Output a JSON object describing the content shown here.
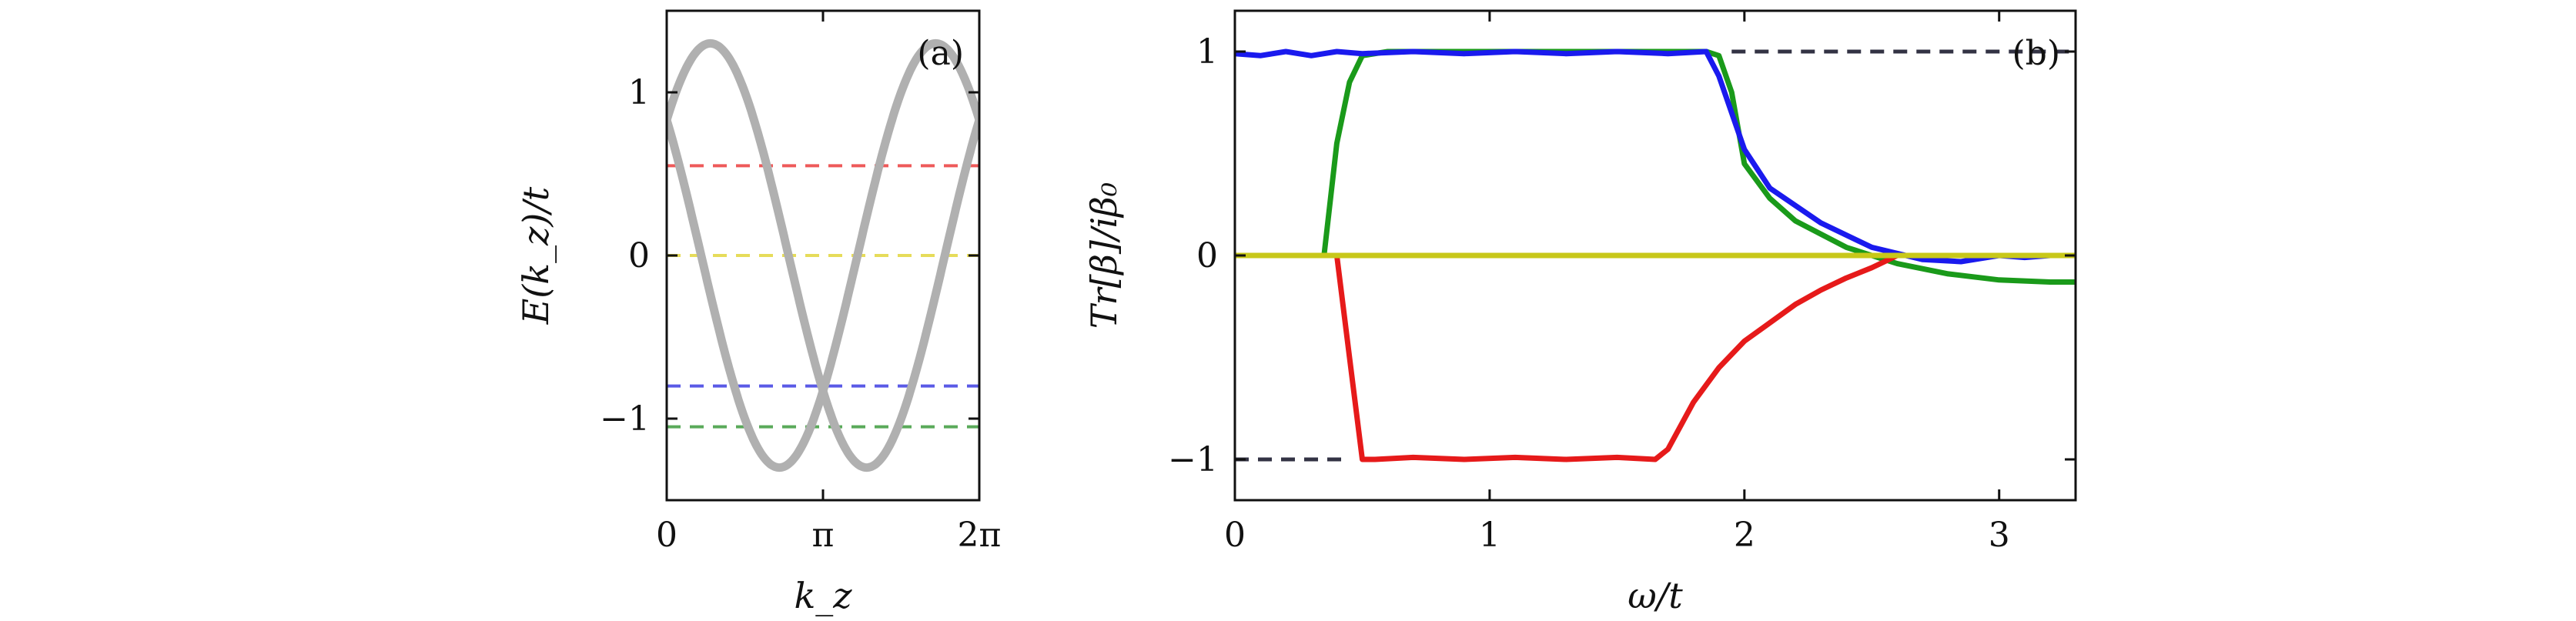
{
  "chart_data": [
    {
      "type": "line",
      "panel_label": "(a)",
      "xlabel": "k_z",
      "ylabel": "E(k_z)/t",
      "xlim": [
        0,
        6.2832
      ],
      "ylim": [
        -1.5,
        1.5
      ],
      "x_ticks": [
        {
          "value": 0,
          "label": "0"
        },
        {
          "value": 3.1416,
          "label": "π"
        },
        {
          "value": 6.2832,
          "label": "2π"
        }
      ],
      "y_ticks": [
        {
          "value": 1,
          "label": "1"
        },
        {
          "value": 0,
          "label": "0"
        },
        {
          "value": -1,
          "label": "−1"
        }
      ],
      "bands": [
        {
          "amplitude": 1.3,
          "phase": 0.878,
          "color": "#b0b0b0"
        },
        {
          "amplitude": 1.3,
          "phase": -0.878,
          "color": "#b0b0b0"
        }
      ],
      "dashed_levels": [
        {
          "y": 0.55,
          "color": "#ee5a5a"
        },
        {
          "y": 0.0,
          "color": "#e6dc5a"
        },
        {
          "y": -0.8,
          "color": "#5a5ae6"
        },
        {
          "y": -1.05,
          "color": "#5aaa5a"
        }
      ]
    },
    {
      "type": "line",
      "panel_label": "(b)",
      "xlabel": "ω/t",
      "ylabel": "Tr[β]/iβ₀",
      "xlim": [
        0,
        3.3
      ],
      "ylim": [
        -1.2,
        1.2
      ],
      "x_ticks": [
        {
          "value": 0,
          "label": "0"
        },
        {
          "value": 1,
          "label": "1"
        },
        {
          "value": 2,
          "label": "2"
        },
        {
          "value": 3,
          "label": "3"
        }
      ],
      "y_ticks": [
        {
          "value": 1,
          "label": "1"
        },
        {
          "value": 0,
          "label": "0"
        },
        {
          "value": -1,
          "label": "−1"
        }
      ],
      "reference_lines": [
        {
          "y": 1,
          "color": "#333344"
        },
        {
          "y": -1,
          "color": "#333344"
        }
      ],
      "series": [
        {
          "color": "#1a9a1a",
          "x": [
            0,
            0.35,
            0.4,
            0.45,
            0.5,
            0.6,
            1.0,
            1.5,
            1.85,
            1.9,
            1.95,
            2.0,
            2.1,
            2.2,
            2.4,
            2.6,
            2.8,
            3.0,
            3.2,
            3.3
          ],
          "y": [
            0,
            0,
            0.55,
            0.85,
            0.98,
            1.0,
            1.0,
            1.0,
            1.0,
            0.98,
            0.8,
            0.45,
            0.28,
            0.17,
            0.04,
            -0.04,
            -0.09,
            -0.12,
            -0.13,
            -0.13
          ]
        },
        {
          "color": "#1a1aee",
          "x": [
            0,
            0.1,
            0.2,
            0.3,
            0.4,
            0.5,
            0.7,
            0.9,
            1.1,
            1.3,
            1.5,
            1.7,
            1.85,
            1.9,
            2.0,
            2.1,
            2.3,
            2.5,
            2.7,
            2.85,
            3.0,
            3.1,
            3.2,
            3.3
          ],
          "y": [
            0.99,
            0.98,
            1.0,
            0.98,
            1.0,
            0.99,
            1.0,
            0.99,
            1.0,
            0.99,
            1.0,
            0.99,
            1.0,
            0.88,
            0.52,
            0.33,
            0.16,
            0.04,
            -0.02,
            -0.03,
            0.0,
            -0.01,
            0.0,
            0.0
          ]
        },
        {
          "color": "#e61a1a",
          "x": [
            0.4,
            0.45,
            0.5,
            0.55,
            0.7,
            0.9,
            1.1,
            1.3,
            1.5,
            1.65,
            1.7,
            1.8,
            1.9,
            2.0,
            2.1,
            2.2,
            2.3,
            2.4,
            2.5,
            2.55,
            2.6
          ],
          "y": [
            0,
            -0.5,
            -1.0,
            -1.0,
            -0.99,
            -1.0,
            -0.99,
            -1.0,
            -0.99,
            -1.0,
            -0.95,
            -0.72,
            -0.55,
            -0.42,
            -0.33,
            -0.24,
            -0.17,
            -0.11,
            -0.06,
            -0.03,
            0.0
          ]
        },
        {
          "color": "#c8c81a",
          "x": [
            0,
            3.3
          ],
          "y": [
            0,
            0
          ]
        }
      ]
    }
  ]
}
